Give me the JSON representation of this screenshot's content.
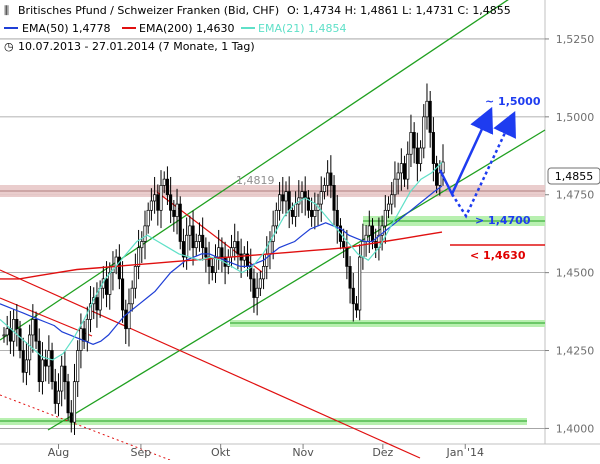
{
  "header": {
    "title": "Britisches Pfund / Schweizer Franken (Bid, CHF)",
    "ohlc": "O: 1,4734  H: 1,4861  L: 1,4731  C: 1,4855",
    "ema50": "EMA(50) 1,4778",
    "ema200": "EMA(200) 1,4630",
    "ema21": "EMA(21) 1,4854",
    "period": "10.07.2013 - 27.01.2014 (7 Monate, 1 Tag)"
  },
  "colors": {
    "candle": "#000000",
    "ema50": "#1f3fd6",
    "ema200": "#e01010",
    "ema21": "#5fe0c8",
    "trend_green": "#20a020",
    "support_zone": "#b8f0b0",
    "resistance_zone": "#e8c8c8",
    "target_blue": "#1e3cf0",
    "label_red": "#e00000"
  },
  "annotations": {
    "level_1_4819": "1,4819",
    "target_1_5000": "~ 1,5000",
    "support_1_4700": "> 1,4700",
    "support_1_4630": "< 1,4630",
    "last_price": "1,4855"
  },
  "chart_data": {
    "type": "line",
    "title": "Britisches Pfund / Schweizer Franken (Bid, CHF)",
    "ylim": [
      1.395,
      1.5375
    ],
    "y_ticks": [
      "1,4000",
      "1,4250",
      "1,4500",
      "1,4750",
      "1,5000",
      "1,5250"
    ],
    "x_ticks": [
      "Aug",
      "Sep",
      "Okt",
      "Nov",
      "Dez",
      "Jan '14"
    ],
    "x_tick_days": [
      22,
      53,
      83,
      114,
      144,
      175
    ],
    "x_range_days": [
      0,
      205
    ],
    "series": [
      {
        "name": "Britisches Pfund / Schweizer Franken (Bid, CHF)",
        "values": [
          1.43,
          1.432,
          1.428,
          1.435,
          1.432,
          1.425,
          1.418,
          1.422,
          1.43,
          1.435,
          1.428,
          1.415,
          1.422,
          1.42,
          1.425,
          1.415,
          1.408,
          1.412,
          1.42,
          1.415,
          1.405,
          1.402,
          1.415,
          1.425,
          1.432,
          1.428,
          1.435,
          1.44,
          1.442,
          1.438,
          1.445,
          1.448,
          1.443,
          1.45,
          1.452,
          1.455,
          1.448,
          1.438,
          1.432,
          1.44,
          1.445,
          1.452,
          1.458,
          1.46,
          1.465,
          1.47,
          1.473,
          1.475,
          1.47,
          1.478,
          1.48,
          1.475,
          1.47,
          1.468,
          1.472,
          1.46,
          1.455,
          1.462,
          1.465,
          1.458,
          1.46,
          1.462,
          1.458,
          1.455,
          1.452,
          1.45,
          1.455,
          1.458,
          1.455,
          1.452,
          1.455,
          1.458,
          1.46,
          1.456,
          1.454,
          1.456,
          1.452,
          1.448,
          1.442,
          1.445,
          1.448,
          1.452,
          1.456,
          1.46,
          1.465,
          1.47,
          1.475,
          1.473,
          1.476,
          1.47,
          1.468,
          1.472,
          1.474,
          1.476,
          1.474,
          1.47,
          1.468,
          1.47,
          1.472,
          1.476,
          1.478,
          1.482,
          1.478,
          1.47,
          1.465,
          1.46,
          1.458,
          1.452,
          1.445,
          1.44,
          1.438,
          1.455,
          1.46,
          1.462,
          1.465,
          1.46,
          1.458,
          1.462,
          1.465,
          1.47,
          1.472,
          1.475,
          1.48,
          1.482,
          1.485,
          1.48,
          1.488,
          1.495,
          1.49,
          1.485,
          1.49,
          1.5,
          1.505,
          1.495,
          1.485,
          1.478,
          1.482,
          1.4855
        ]
      },
      {
        "name": "EMA(50) 1,4778",
        "values": [
          1.44,
          1.439,
          1.438,
          1.437,
          1.436,
          1.435,
          1.434,
          1.433,
          1.431,
          1.43,
          1.429,
          1.428,
          1.427,
          1.428,
          1.43,
          1.433,
          1.436,
          1.438,
          1.44,
          1.442,
          1.444,
          1.447,
          1.45,
          1.452,
          1.454,
          1.455,
          1.456,
          1.456,
          1.455,
          1.454,
          1.453,
          1.452,
          1.452,
          1.453,
          1.454,
          1.456,
          1.458,
          1.459,
          1.46,
          1.462,
          1.464,
          1.465,
          1.466,
          1.465,
          1.464,
          1.462,
          1.461,
          1.46,
          1.46,
          1.462,
          1.464,
          1.466,
          1.468,
          1.47,
          1.472,
          1.474,
          1.476,
          1.4778
        ]
      },
      {
        "name": "EMA(200) 1,4630",
        "values": [
          1.448,
          1.448,
          1.449,
          1.45,
          1.451,
          1.4515,
          1.452,
          1.4525,
          1.453,
          1.4535,
          1.454,
          1.4545,
          1.455,
          1.4555,
          1.456,
          1.4565,
          1.457,
          1.4575,
          1.458,
          1.459,
          1.46,
          1.461,
          1.462,
          1.463
        ]
      },
      {
        "name": "EMA(21) 1,4854",
        "values": [
          1.435,
          1.432,
          1.429,
          1.426,
          1.423,
          1.422,
          1.424,
          1.429,
          1.435,
          1.442,
          1.448,
          1.452,
          1.456,
          1.46,
          1.462,
          1.46,
          1.458,
          1.456,
          1.455,
          1.454,
          1.455,
          1.454,
          1.452,
          1.45,
          1.452,
          1.456,
          1.462,
          1.468,
          1.472,
          1.474,
          1.472,
          1.468,
          1.464,
          1.46,
          1.456,
          1.454,
          1.458,
          1.464,
          1.47,
          1.476,
          1.48,
          1.482,
          1.4854
        ]
      }
    ]
  }
}
